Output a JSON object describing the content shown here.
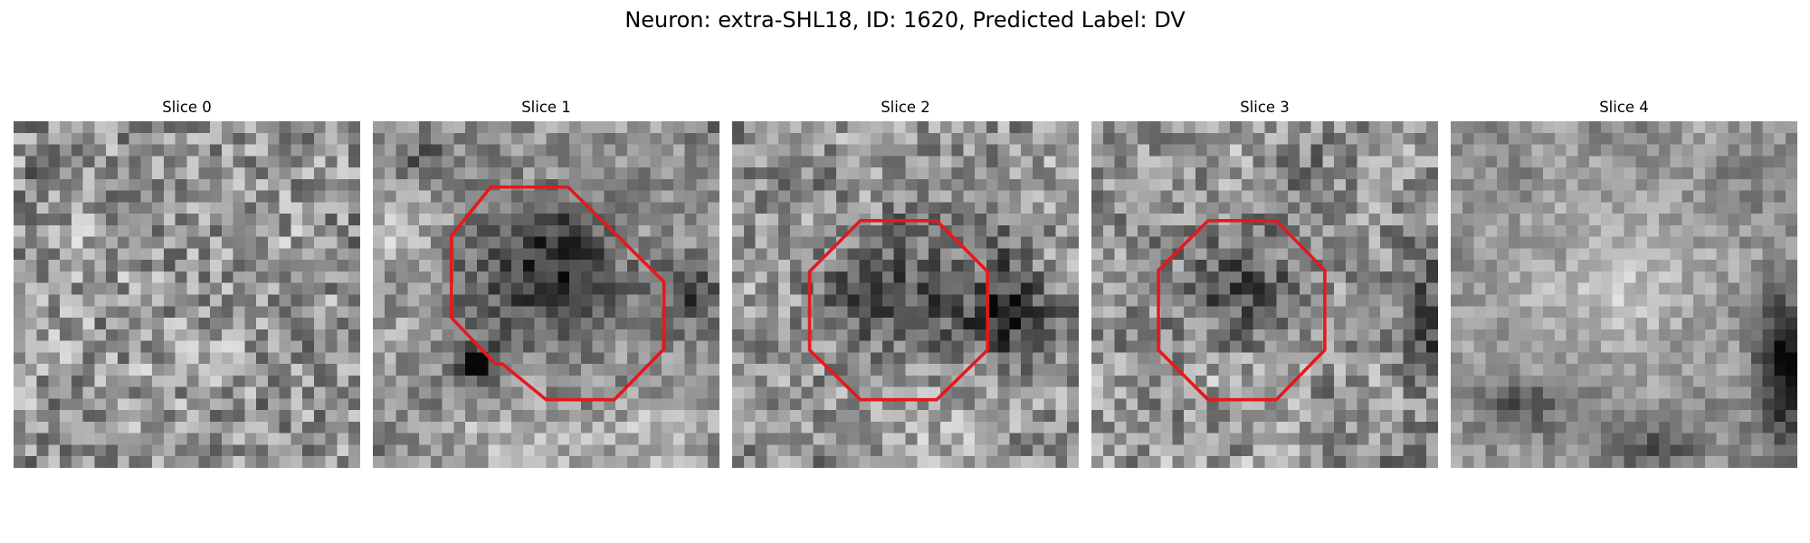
{
  "figure": {
    "title": "Neuron: extra-SHL18, ID: 1620, Predicted Label: DV"
  },
  "panels": [
    {
      "title": "Slice 0",
      "has_contour": false
    },
    {
      "title": "Slice 1",
      "has_contour": true,
      "contour_color": "#e31a1c"
    },
    {
      "title": "Slice 2",
      "has_contour": true,
      "contour_color": "#e31a1c"
    },
    {
      "title": "Slice 3",
      "has_contour": true,
      "contour_color": "#e31a1c"
    },
    {
      "title": "Slice 4",
      "has_contour": false
    }
  ],
  "colors": {
    "contour": "#e31a1c",
    "colormap": "grayscale"
  }
}
